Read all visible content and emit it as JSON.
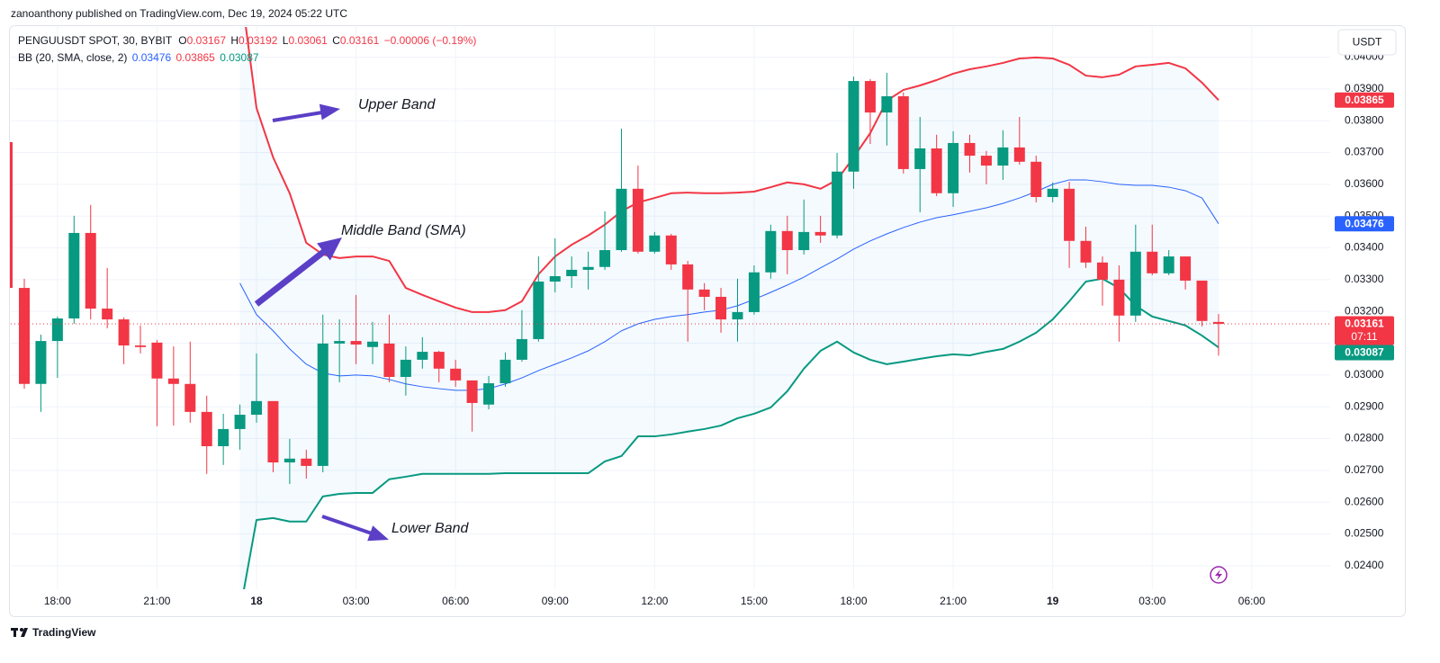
{
  "published": "zanoanthony published on TradingView.com, Dec 19, 2024 05:22 UTC",
  "currency": "USDT",
  "brand": "TradingView",
  "chart_data": {
    "type": "candlestick",
    "symbol": "PENGUUSDT SPOT, 30, BYBIT",
    "ohlc_labels": [
      "O",
      "H",
      "L",
      "C"
    ],
    "change": "−0.00006 (−0.19%)",
    "categories": [
      null,
      null,
      "18:00",
      null,
      null,
      null,
      null,
      null,
      "21:00",
      null,
      null,
      null,
      null,
      null,
      "18",
      null,
      null,
      null,
      null,
      null,
      "03:00",
      null,
      null,
      null,
      null,
      null,
      "06:00",
      null,
      null,
      null,
      null,
      null,
      "09:00",
      null,
      null,
      null,
      null,
      null,
      "12:00",
      null,
      null,
      null,
      null,
      null,
      "15:00",
      null,
      null,
      null,
      null,
      null,
      "18:00",
      null,
      null,
      null,
      null,
      null,
      "21:00",
      null,
      null,
      null,
      null,
      null,
      "19",
      null,
      null,
      null,
      null,
      null,
      "03:00",
      null,
      null,
      null,
      null,
      null,
      "06:00",
      null,
      null,
      null,
      null
    ],
    "open": [
      0.03274,
      0.02972,
      0.03107,
      0.03178,
      0.03447,
      0.03209,
      0.03175,
      0.03093,
      0.03102,
      0.02989,
      0.02972,
      0.02884,
      0.02776,
      0.0283,
      0.02875,
      0.02918,
      0.02725,
      0.02737,
      0.02714,
      0.03099,
      0.03107,
      0.03088,
      0.03099,
      0.02994,
      0.03048,
      0.03073,
      0.0302,
      0.02983,
      0.02907,
      0.02974,
      0.03048,
      0.03113,
      0.03294,
      0.03311,
      0.03331,
      0.0334,
      0.03393,
      0.03586,
      0.03388,
      0.03439,
      0.03348,
      0.03269,
      0.03246,
      0.03175,
      0.03198,
      0.03323,
      0.03453,
      0.03393,
      0.0345,
      0.03439,
      0.0364,
      0.03925,
      0.03826,
      0.03877,
      0.03648,
      0.03713,
      0.03572,
      0.0373,
      0.0369,
      0.03659,
      0.03716,
      0.03671,
      0.0356,
      0.03586,
      0.03422,
      0.03354,
      0.033,
      0.03187,
      0.03388,
      0.0332,
      0.03373,
      0.03297,
      0.03167,
      null,
      null,
      null,
      null,
      null,
      null
    ],
    "high": [
      0.03303,
      0.03127,
      0.03184,
      0.03501,
      0.03535,
      0.03337,
      0.03181,
      0.03156,
      0.0311,
      0.0309,
      0.03105,
      0.02935,
      0.02878,
      0.02907,
      0.03068,
      0.02918,
      0.02799,
      0.02765,
      0.0319,
      0.03175,
      0.03252,
      0.03167,
      0.0319,
      0.0309,
      0.03119,
      0.03076,
      0.03048,
      0.02983,
      0.02997,
      0.03071,
      0.03204,
      0.03373,
      0.0343,
      0.03373,
      0.03388,
      0.03515,
      0.03775,
      0.03659,
      0.0345,
      0.03444,
      0.03359,
      0.03289,
      0.03274,
      0.03303,
      0.03345,
      0.03473,
      0.03501,
      0.03552,
      0.03501,
      0.03699,
      0.03939,
      0.03931,
      0.03951,
      0.03889,
      0.03812,
      0.03756,
      0.03767,
      0.03756,
      0.03705,
      0.0377,
      0.03812,
      0.0369,
      0.03606,
      0.03608,
      0.03467,
      0.03373,
      0.03345,
      0.03473,
      0.03473,
      0.03393,
      0.03373,
      0.03297,
      0.03192,
      null,
      null,
      null,
      null,
      null,
      null
    ],
    "low": [
      0.02957,
      0.02884,
      0.02991,
      0.03161,
      0.03175,
      0.03147,
      0.03034,
      0.03068,
      0.02839,
      0.02841,
      0.0285,
      0.02689,
      0.02717,
      0.02765,
      0.0285,
      0.02694,
      0.02657,
      0.02674,
      0.02694,
      0.02977,
      0.03034,
      0.03034,
      0.02977,
      0.02935,
      0.0302,
      0.02977,
      0.02963,
      0.02822,
      0.02892,
      0.02963,
      0.03042,
      0.03105,
      0.0326,
      0.03274,
      0.03269,
      0.03331,
      0.03388,
      0.03382,
      0.03382,
      0.03331,
      0.03105,
      0.03204,
      0.03133,
      0.03105,
      0.0319,
      0.03303,
      0.03317,
      0.03379,
      0.03416,
      0.0343,
      0.03586,
      0.03727,
      0.03722,
      0.03634,
      0.03512,
      0.03563,
      0.03529,
      0.03637,
      0.036,
      0.03614,
      0.03662,
      0.03543,
      0.03543,
      0.03337,
      0.03337,
      0.03218,
      0.03105,
      0.03167,
      0.03314,
      0.03314,
      0.03269,
      0.03153,
      0.03061,
      null,
      null,
      null,
      null,
      null,
      null
    ],
    "close": [
      0.02972,
      0.03107,
      0.03178,
      0.03447,
      0.03209,
      0.03175,
      0.03093,
      0.03088,
      0.02989,
      0.02972,
      0.02884,
      0.02776,
      0.0283,
      0.02875,
      0.02918,
      0.02725,
      0.02737,
      0.02714,
      0.03099,
      0.03107,
      0.03096,
      0.03105,
      0.02994,
      0.03048,
      0.03073,
      0.0302,
      0.02983,
      0.02912,
      0.02974,
      0.03048,
      0.03113,
      0.03294,
      0.03311,
      0.03331,
      0.0334,
      0.03393,
      0.03586,
      0.03388,
      0.03439,
      0.03348,
      0.03269,
      0.03246,
      0.03175,
      0.03198,
      0.03323,
      0.03453,
      0.03393,
      0.0345,
      0.03439,
      0.0364,
      0.03925,
      0.03826,
      0.03877,
      0.03648,
      0.03713,
      0.03572,
      0.0373,
      0.0369,
      0.03659,
      0.03716,
      0.03671,
      0.0356,
      0.03586,
      0.03422,
      0.03354,
      0.033,
      0.03187,
      0.03388,
      0.0332,
      0.03373,
      0.03297,
      0.0317,
      0.03161,
      null,
      null,
      null,
      null,
      null,
      null
    ],
    "up_color": "#089981",
    "down_color": "#f23645",
    "indicator": {
      "label": "BB (20, SMA, close, 2)",
      "fill": "#2196f3",
      "bands": [
        {
          "color": "#f23645",
          "values": [
            null,
            null,
            null,
            null,
            null,
            null,
            null,
            null,
            null,
            null,
            null,
            null,
            null,
            0.04237,
            0.0384,
            0.03685,
            0.03572,
            0.03416,
            0.03379,
            0.03368,
            0.03373,
            0.03373,
            0.03359,
            0.03274,
            0.03252,
            0.03232,
            0.03212,
            0.03198,
            0.03198,
            0.03204,
            0.03232,
            0.03317,
            0.03373,
            0.0341,
            0.03439,
            0.03473,
            0.03515,
            0.03543,
            0.03557,
            0.03572,
            0.03574,
            0.03572,
            0.03572,
            0.03574,
            0.03577,
            0.03591,
            0.03606,
            0.036,
            0.03586,
            0.03614,
            0.03685,
            0.03761,
            0.03863,
            0.03897,
            0.03911,
            0.03928,
            0.03948,
            0.03962,
            0.03971,
            0.03982,
            0.03996,
            0.03999,
            0.03996,
            0.03976,
            0.03942,
            0.03937,
            0.03945,
            0.03971,
            0.03976,
            0.03982,
            0.03965,
            0.0392,
            0.03865,
            null,
            null,
            null,
            null,
            null,
            null
          ]
        },
        {
          "color": "#2962ff",
          "values": [
            null,
            null,
            null,
            null,
            null,
            null,
            null,
            null,
            null,
            null,
            null,
            null,
            null,
            0.03289,
            0.0319,
            0.03139,
            0.03082,
            0.03034,
            0.03006,
            0.02997,
            0.03,
            0.02997,
            0.02986,
            0.02972,
            0.02963,
            0.02957,
            0.02952,
            0.02952,
            0.02957,
            0.02972,
            0.02991,
            0.03014,
            0.03034,
            0.03054,
            0.03076,
            0.03105,
            0.03139,
            0.03161,
            0.03175,
            0.03184,
            0.0319,
            0.03198,
            0.03204,
            0.03218,
            0.03238,
            0.0326,
            0.03283,
            0.03308,
            0.03337,
            0.03365,
            0.03396,
            0.03422,
            0.03444,
            0.03464,
            0.03481,
            0.03495,
            0.03504,
            0.03515,
            0.03526,
            0.0354,
            0.03557,
            0.03577,
            0.036,
            0.03614,
            0.03614,
            0.03608,
            0.036,
            0.03597,
            0.03597,
            0.03591,
            0.0358,
            0.03557,
            0.03476,
            null,
            null,
            null,
            null,
            null,
            null
          ]
        },
        {
          "color": "#089981",
          "values": [
            null,
            null,
            null,
            null,
            null,
            null,
            null,
            null,
            null,
            null,
            null,
            null,
            null,
            0.02256,
            0.02544,
            0.0255,
            0.02539,
            0.02539,
            0.02618,
            0.02626,
            0.02629,
            0.02629,
            0.02672,
            0.0268,
            0.02689,
            0.02689,
            0.02689,
            0.02689,
            0.02689,
            0.02691,
            0.02691,
            0.02691,
            0.02691,
            0.02691,
            0.02691,
            0.02728,
            0.02745,
            0.02807,
            0.02807,
            0.02813,
            0.02822,
            0.0283,
            0.02841,
            0.02864,
            0.02878,
            0.02898,
            0.02949,
            0.0302,
            0.03076,
            0.03105,
            0.03071,
            0.03048,
            0.03034,
            0.03042,
            0.03051,
            0.03059,
            0.03065,
            0.03062,
            0.03073,
            0.03082,
            0.03105,
            0.03133,
            0.03175,
            0.03232,
            0.03294,
            0.03303,
            0.03274,
            0.03218,
            0.03184,
            0.0317,
            0.03156,
            0.03124,
            0.03087,
            null,
            null,
            null,
            null,
            null,
            null
          ]
        }
      ]
    },
    "countdown": "07:11",
    "annotations": [
      "Upper Band",
      "Middle Band (SMA)",
      "Lower Band"
    ],
    "ylim": [
      0.02326,
      0.04095
    ],
    "yticks": [
      {
        "value": 0.024,
        "label": "0.02400"
      },
      {
        "value": 0.025,
        "label": "0.02500"
      },
      {
        "value": 0.026,
        "label": "0.02600"
      },
      {
        "value": 0.027,
        "label": "0.02700"
      },
      {
        "value": 0.028,
        "label": "0.02800"
      },
      {
        "value": 0.029,
        "label": "0.02900"
      },
      {
        "value": 0.03,
        "label": "0.03000"
      },
      {
        "value": 0.031,
        "label": "0.03100"
      },
      {
        "value": 0.032,
        "label": "0.03200"
      },
      {
        "value": 0.033,
        "label": "0.03300"
      },
      {
        "value": 0.034,
        "label": "0.03400"
      },
      {
        "value": 0.035,
        "label": "0.03500"
      },
      {
        "value": 0.036,
        "label": "0.03600"
      },
      {
        "value": 0.037,
        "label": "0.03700"
      },
      {
        "value": 0.038,
        "label": "0.03800"
      },
      {
        "value": 0.039,
        "label": "0.03900"
      },
      {
        "value": 0.04,
        "label": "0.04000"
      }
    ],
    "grid": true
  }
}
